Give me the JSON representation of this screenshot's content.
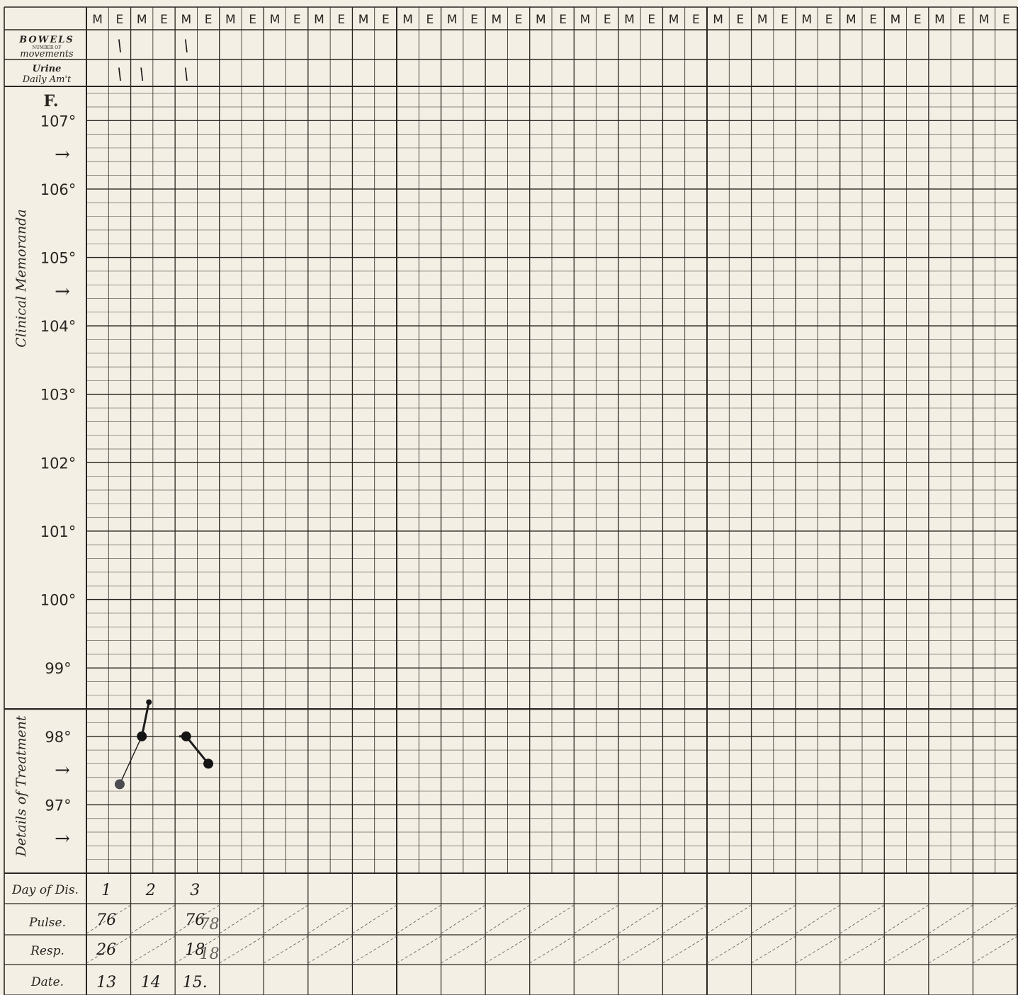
{
  "chart_data": {
    "type": "line",
    "title": "",
    "header_rows": [
      {
        "key": "bowels",
        "label": "BOWELS",
        "sublabel_small": "NUMBER OF",
        "sublabel": "movements"
      },
      {
        "key": "urine",
        "label": "Urine",
        "sublabel": "Daily Am't"
      }
    ],
    "unit_label": "F.",
    "side_labels": [
      "Clinical Memoranda",
      "Details of Treatment"
    ],
    "y_ticks": [
      {
        "label": "107°",
        "value": 107
      },
      {
        "label": "106°",
        "value": 106
      },
      {
        "label": "105°",
        "value": 105
      },
      {
        "label": "104°",
        "value": 104
      },
      {
        "label": "103°",
        "value": 103
      },
      {
        "label": "102°",
        "value": 102
      },
      {
        "label": "101°",
        "value": 101
      },
      {
        "label": "100°",
        "value": 100
      },
      {
        "label": "99°",
        "value": 99
      },
      {
        "label": "98°",
        "value": 98
      },
      {
        "label": "97°",
        "value": 97
      }
    ],
    "arrow_marks": [
      106.5,
      104.5,
      97.5,
      96.5
    ],
    "arrow_glyph": "→",
    "ylim": [
      96.0,
      107.5
    ],
    "normal_line": 98.4,
    "days": 21,
    "me_labels": [
      "M",
      "E"
    ],
    "temperature_series": [
      {
        "day": 1,
        "period": "E",
        "value": 97.3
      },
      {
        "day": 2,
        "period": "M",
        "value": 98.0
      },
      {
        "day": 2,
        "period": "M",
        "value": 98.5
      },
      {
        "day": 3,
        "period": "M",
        "value": 98.0
      },
      {
        "day": 3,
        "period": "E",
        "value": 97.6
      }
    ],
    "bowels_marks": [
      {
        "day": 1,
        "period": "E",
        "mark": "\\"
      },
      {
        "day": 3,
        "period": "M",
        "mark": "\\"
      }
    ],
    "urine_marks": [
      {
        "day": 1,
        "period": "E",
        "mark": "\\"
      },
      {
        "day": 2,
        "period": "M",
        "mark": "\\"
      },
      {
        "day": 3,
        "period": "M",
        "mark": "\\"
      }
    ],
    "bottom_rows": [
      {
        "key": "day_of_disease",
        "label": "Day of Dis.",
        "values": [
          "1",
          "2",
          "3"
        ]
      },
      {
        "key": "pulse",
        "label": "Pulse.",
        "values": [
          "76",
          "",
          "76"
        ],
        "extra": [
          "",
          "",
          "78"
        ]
      },
      {
        "key": "resp",
        "label": "Resp.",
        "values": [
          "26",
          "",
          "18"
        ],
        "extra": [
          "",
          "",
          "18"
        ]
      },
      {
        "key": "date",
        "label": "Date.",
        "values": [
          "13",
          "14",
          "15."
        ]
      }
    ]
  }
}
